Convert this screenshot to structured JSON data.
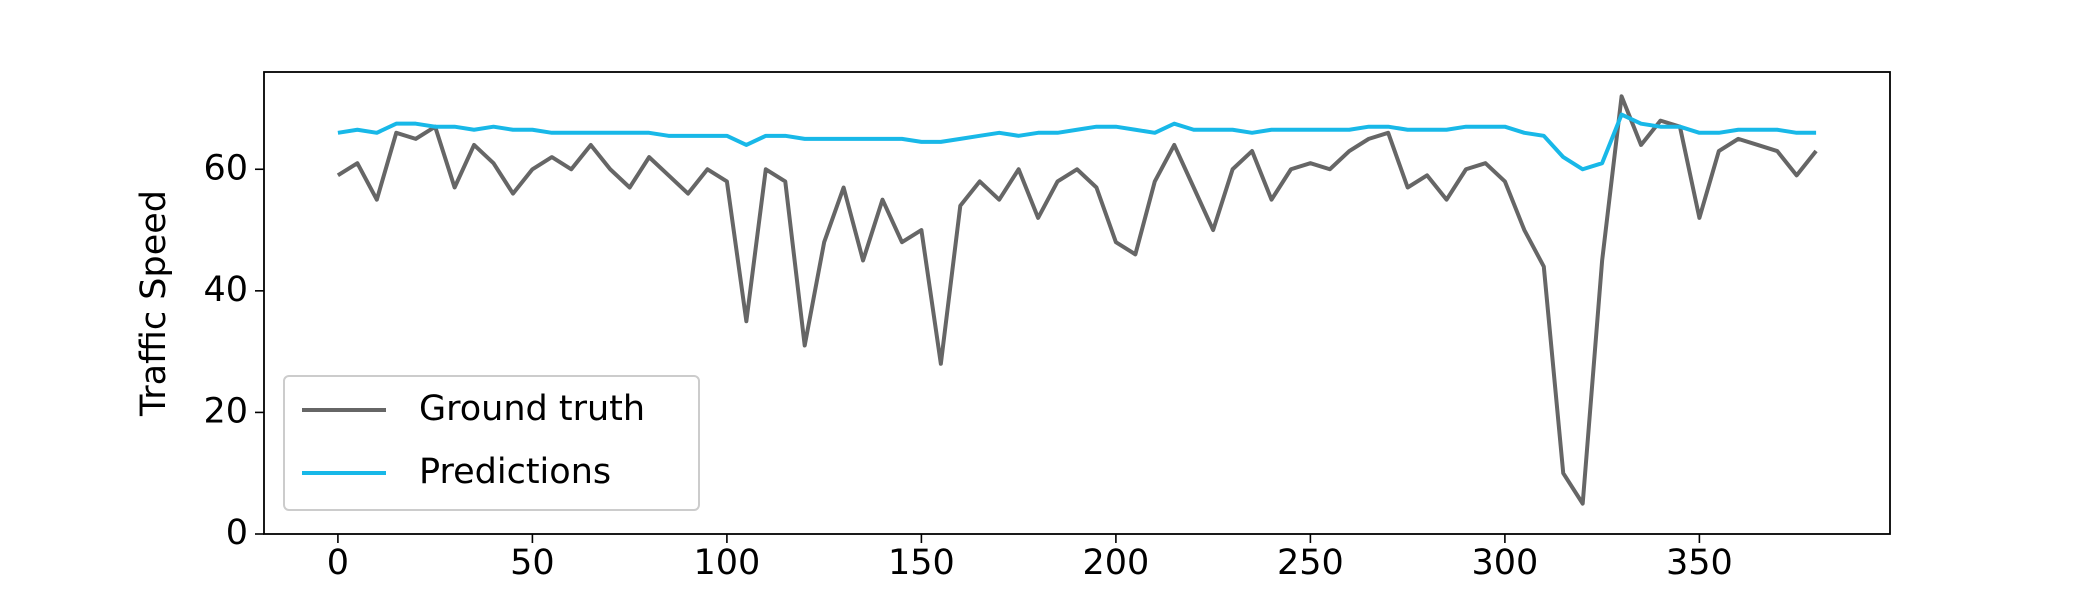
{
  "chart_data": {
    "type": "line",
    "y_label": "Traffic Speed",
    "x": [
      0,
      5,
      10,
      15,
      20,
      25,
      30,
      35,
      40,
      45,
      50,
      55,
      60,
      65,
      70,
      75,
      80,
      85,
      90,
      95,
      100,
      105,
      110,
      115,
      120,
      125,
      130,
      135,
      140,
      145,
      150,
      155,
      160,
      165,
      170,
      175,
      180,
      185,
      190,
      195,
      200,
      205,
      210,
      215,
      220,
      225,
      230,
      235,
      240,
      245,
      250,
      255,
      260,
      265,
      270,
      275,
      280,
      285,
      290,
      295,
      300,
      305,
      310,
      315,
      320,
      325,
      330,
      335,
      340,
      345,
      350,
      355,
      360,
      365,
      370,
      375,
      380
    ],
    "series": [
      {
        "name": "Ground truth",
        "color": "#666666",
        "values": [
          59,
          61,
          55,
          66,
          65,
          67,
          57,
          64,
          61,
          56,
          60,
          62,
          60,
          64,
          60,
          57,
          62,
          59,
          56,
          60,
          58,
          35,
          60,
          58,
          31,
          48,
          57,
          45,
          55,
          48,
          50,
          28,
          54,
          58,
          55,
          60,
          52,
          58,
          60,
          57,
          48,
          46,
          58,
          64,
          57,
          50,
          60,
          63,
          55,
          60,
          61,
          60,
          63,
          65,
          66,
          57,
          59,
          55,
          60,
          61,
          58,
          50,
          44,
          10,
          5,
          45,
          72,
          64,
          68,
          67,
          52,
          63,
          65,
          64,
          63,
          59,
          63
        ]
      },
      {
        "name": "Predictions",
        "color": "#18b8e8",
        "values": [
          66,
          66.5,
          66,
          67.5,
          67.5,
          67,
          67,
          66.5,
          67,
          66.5,
          66.5,
          66,
          66,
          66,
          66,
          66,
          66,
          65.5,
          65.5,
          65.5,
          65.5,
          64,
          65.5,
          65.5,
          65,
          65,
          65,
          65,
          65,
          65,
          64.5,
          64.5,
          65,
          65.5,
          66,
          65.5,
          66,
          66,
          66.5,
          67,
          67,
          66.5,
          66,
          67.5,
          66.5,
          66.5,
          66.5,
          66,
          66.5,
          66.5,
          66.5,
          66.5,
          66.5,
          67,
          67,
          66.5,
          66.5,
          66.5,
          67,
          67,
          67,
          66,
          65.5,
          62,
          60,
          61,
          69,
          67.5,
          67,
          67,
          66,
          66,
          66.5,
          66.5,
          66.5,
          66,
          66
        ]
      }
    ],
    "xlim": [
      -19,
      399
    ],
    "xticks": [
      0,
      50,
      100,
      150,
      200,
      250,
      300,
      350
    ],
    "ylim": [
      0,
      76
    ],
    "yticks": [
      0,
      20,
      40,
      60
    ],
    "legend": "lower left"
  }
}
